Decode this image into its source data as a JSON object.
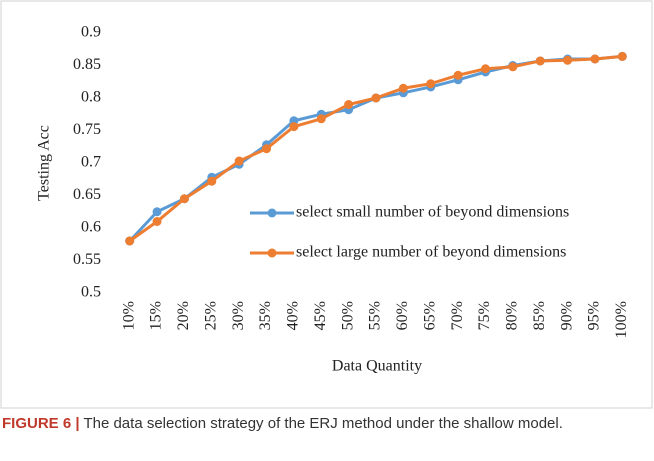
{
  "chart_data": {
    "type": "line",
    "ylabel": "Testing Acc",
    "xlabel": "Data Quantity",
    "categories": [
      "10%",
      "15%",
      "20%",
      "25%",
      "30%",
      "35%",
      "40%",
      "45%",
      "50%",
      "55%",
      "60%",
      "65%",
      "70%",
      "75%",
      "80%",
      "85%",
      "90%",
      "95%",
      "100%"
    ],
    "series": [
      {
        "name": "select small number of beyond dimensions",
        "color": "#5b9bd5",
        "values": [
          0.58,
          0.625,
          0.645,
          0.678,
          0.698,
          0.728,
          0.765,
          0.775,
          0.782,
          0.8,
          0.808,
          0.817,
          0.828,
          0.84,
          0.85,
          0.857,
          0.86,
          0.86,
          0.864
        ]
      },
      {
        "name": "select large number of beyond dimensions",
        "color": "#ed7d31",
        "values": [
          0.58,
          0.61,
          0.645,
          0.672,
          0.703,
          0.722,
          0.756,
          0.768,
          0.79,
          0.8,
          0.815,
          0.822,
          0.835,
          0.845,
          0.848,
          0.857,
          0.858,
          0.86,
          0.864
        ]
      }
    ],
    "ylim": [
      0.5,
      0.9
    ],
    "yticks": [
      0.5,
      0.55,
      0.6,
      0.65,
      0.7,
      0.75,
      0.8,
      0.85,
      0.9
    ],
    "grid": false
  },
  "caption": {
    "label": "FIGURE 6 |",
    "text": "The data selection strategy of the ERJ method under the shallow model."
  }
}
